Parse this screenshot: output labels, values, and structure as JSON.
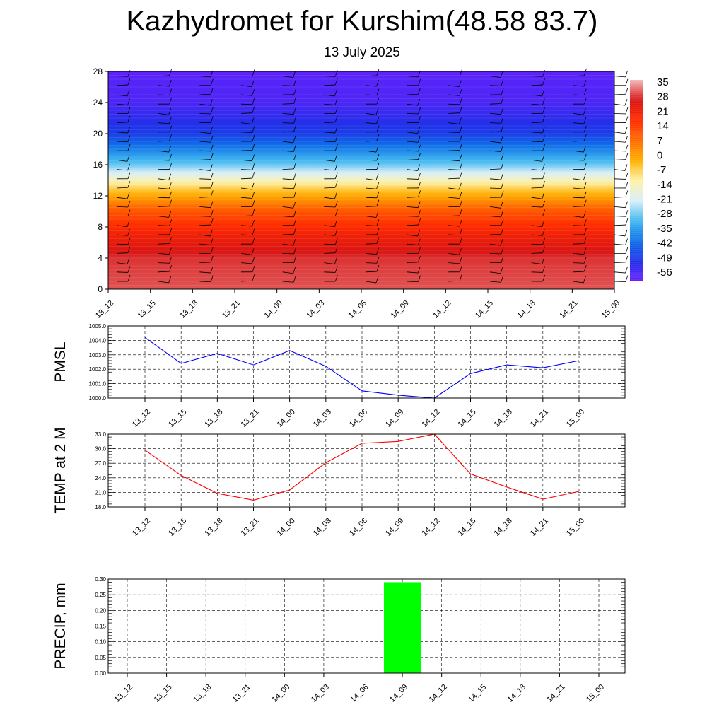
{
  "header": {
    "title": "Kazhydromet for Kurshim(48.58 83.7)",
    "subtitle": "13 July 2025"
  },
  "colors": {
    "pmsl_line": "#0000ff",
    "temp_line": "#ff0000",
    "precip_bar": "#00ff00",
    "colorbar_stops": [
      "#f0b8b8",
      "#d81414",
      "#ff2a00",
      "#ff6a00",
      "#ffb000",
      "#fff2a8",
      "#d8eefa",
      "#40b8f0",
      "#1070e8",
      "#2030e8",
      "#6a20ff"
    ]
  },
  "chart_data": [
    {
      "type": "heatmap",
      "description_of_panel": "",
      "x_ticks": [
        "13_12",
        "13_15",
        "13_18",
        "13_21",
        "14_00",
        "14_03",
        "14_06",
        "14_09",
        "14_12",
        "14_15",
        "14_18",
        "14_21",
        "15_00"
      ],
      "y_ticks": [
        0,
        4,
        8,
        12,
        16,
        20,
        24,
        28
      ],
      "ylim": [
        0,
        28
      ],
      "colorbar_labels": [
        "35",
        "28",
        "21",
        "14",
        "7",
        "0",
        "-7",
        "-14",
        "-21",
        "-28",
        "-35",
        "-42",
        "-49",
        "-56"
      ],
      "colorbar_range": [
        -60,
        38
      ],
      "level_temperature_profile": [
        {
          "level": 0,
          "value": 32
        },
        {
          "level": 4,
          "value": 30
        },
        {
          "level": 7,
          "value": 22
        },
        {
          "level": 10,
          "value": 12
        },
        {
          "level": 13,
          "value": -6
        },
        {
          "level": 16,
          "value": -28
        },
        {
          "level": 20,
          "value": -48
        },
        {
          "level": 24,
          "value": -56
        },
        {
          "level": 28,
          "value": -58
        }
      ],
      "wind_barbs": true
    },
    {
      "type": "line",
      "ylabel": "PMSL",
      "x": [
        "13_12",
        "13_15",
        "13_18",
        "13_21",
        "14_00",
        "14_03",
        "14_06",
        "14_09",
        "14_12",
        "14_15",
        "14_18",
        "14_21",
        "15_00"
      ],
      "series": [
        {
          "values": [
            1004.2,
            1002.4,
            1003.1,
            1002.3,
            1003.3,
            1002.2,
            1000.5,
            1000.2,
            1000.0,
            1001.7,
            1002.3,
            1002.1,
            1002.6
          ]
        }
      ],
      "y_ticks": [
        "1000.0",
        "1001.0",
        "1002.0",
        "1003.0",
        "1004.0",
        "1005.0"
      ],
      "ylim": [
        1000,
        1005
      ],
      "grid": true
    },
    {
      "type": "line",
      "ylabel": "TEMP at 2 M",
      "x": [
        "13_12",
        "13_15",
        "13_18",
        "13_21",
        "14_00",
        "14_03",
        "14_06",
        "14_09",
        "14_12",
        "14_15",
        "14_18",
        "14_21",
        "15_00"
      ],
      "series": [
        {
          "values": [
            29.7,
            24.5,
            20.8,
            19.4,
            21.5,
            27.1,
            31.1,
            31.5,
            33.0,
            24.8,
            22.1,
            19.6,
            21.2
          ]
        }
      ],
      "y_ticks": [
        "18.0",
        "21.0",
        "24.0",
        "27.0",
        "30.0",
        "33.0"
      ],
      "ylim": [
        18,
        33
      ],
      "grid": true
    },
    {
      "type": "bar",
      "ylabel": "PRECIP, mm",
      "categories": [
        "13_12",
        "13_15",
        "13_18",
        "13_21",
        "14_00",
        "14_03",
        "14_06",
        "14_09",
        "14_12",
        "14_15",
        "14_18",
        "14_21",
        "15_00"
      ],
      "values": [
        0,
        0,
        0,
        0,
        0,
        0,
        0,
        0.29,
        0,
        0,
        0,
        0,
        0
      ],
      "y_ticks": [
        "0.00",
        "0.05",
        "0.10",
        "0.15",
        "0.20",
        "0.25",
        "0.30"
      ],
      "ylim": [
        0,
        0.3
      ],
      "grid": true
    }
  ]
}
